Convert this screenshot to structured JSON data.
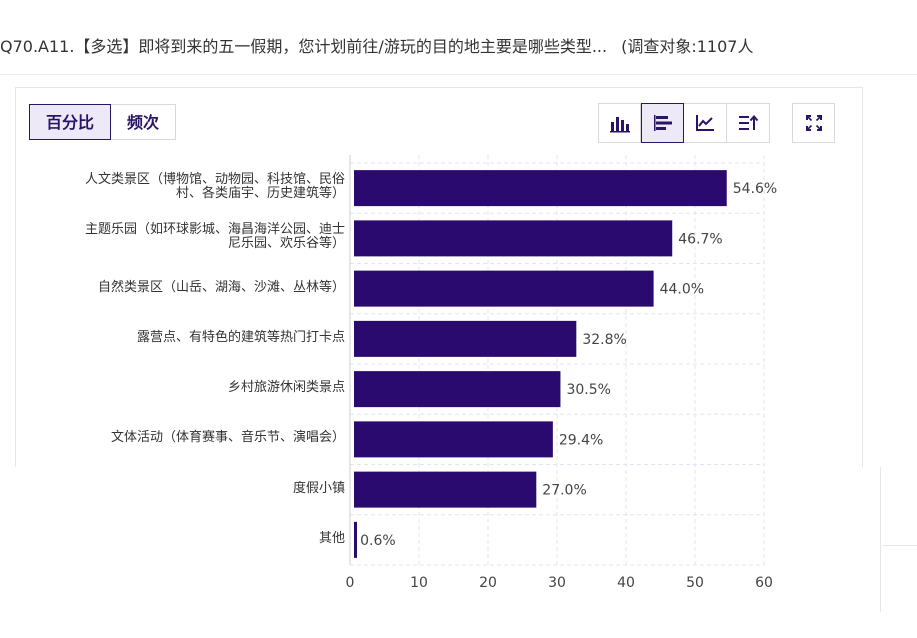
{
  "question": {
    "text": "Q70.A11.【多选】即将到来的五一假期，您计划前往/游玩的目的地主要是哪些类型...",
    "respondents": "(调查对象:1107人"
  },
  "toggle": {
    "percent_label": "百分比",
    "count_label": "频次",
    "active": "percent"
  },
  "toolbar": {
    "icons": [
      "vertical-bar-chart-icon",
      "horizontal-bar-chart-icon",
      "line-chart-icon",
      "sort-icon",
      "fullscreen-icon"
    ],
    "active_icon": "horizontal-bar-chart-icon"
  },
  "colors": {
    "bar": "#2a0a6e",
    "accent": "#2a1468",
    "grid": "#e4e2f0"
  },
  "chart_data": {
    "type": "bar",
    "orientation": "horizontal",
    "categories": [
      [
        "人文类景区（博物馆、动物园、科技馆、民俗",
        "村、各类庙宇、历史建筑等）"
      ],
      [
        "主题乐园（如环球影城、海昌海洋公园、迪士",
        "尼乐园、欢乐谷等）"
      ],
      [
        "自然类景区（山岳、湖海、沙滩、丛林等）"
      ],
      [
        "露营点、有特色的建筑等热门打卡点"
      ],
      [
        "乡村旅游休闲类景点"
      ],
      [
        "文体活动（体育赛事、音乐节、演唱会）"
      ],
      [
        "度假小镇"
      ],
      [
        "其他"
      ]
    ],
    "values": [
      54.6,
      46.7,
      44.0,
      32.8,
      30.5,
      29.4,
      27.0,
      0.6
    ],
    "value_labels": [
      "54.6%",
      "46.7%",
      "44.0%",
      "32.8%",
      "30.5%",
      "29.4%",
      "27.0%",
      "0.6%"
    ],
    "xlim": [
      0,
      60
    ],
    "xticks": [
      0,
      10,
      20,
      30,
      40,
      50,
      60
    ],
    "grid": true
  }
}
